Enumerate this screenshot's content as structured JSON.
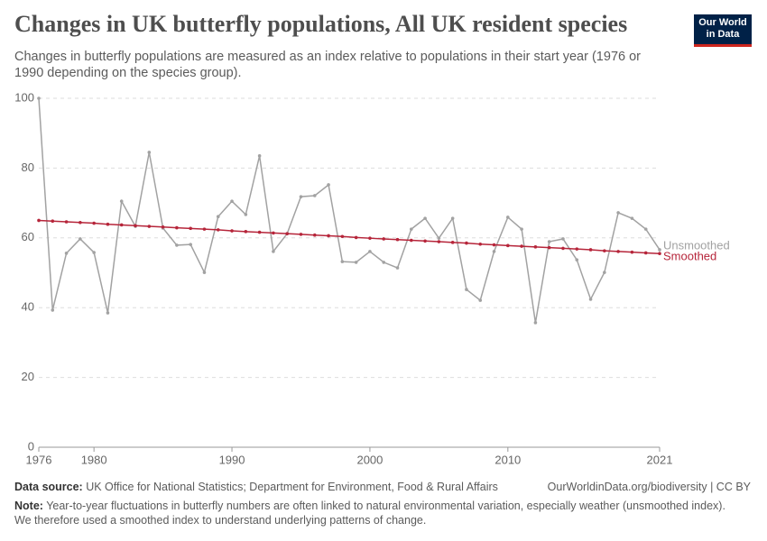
{
  "chart_data": {
    "type": "line",
    "title": "Changes in UK butterfly populations, All UK resident species",
    "subtitle": "Changes in butterfly populations are measured as an index relative to populations in their start year (1976 or 1990 depending on the species group).",
    "logo": "Our World in Data",
    "x": [
      1976,
      1977,
      1978,
      1979,
      1980,
      1981,
      1982,
      1983,
      1984,
      1985,
      1986,
      1987,
      1988,
      1989,
      1990,
      1991,
      1992,
      1993,
      1994,
      1995,
      1996,
      1997,
      1998,
      1999,
      2000,
      2001,
      2002,
      2003,
      2004,
      2005,
      2006,
      2007,
      2008,
      2009,
      2010,
      2011,
      2012,
      2013,
      2014,
      2015,
      2016,
      2017,
      2018,
      2019,
      2020,
      2021
    ],
    "series": [
      {
        "name": "Unsmoothed",
        "color": "#a2a2a2",
        "values": [
          100,
          39.3,
          55.6,
          59.7,
          55.8,
          38.5,
          70.5,
          63.3,
          84.5,
          62.8,
          57.9,
          58.1,
          50.1,
          66.1,
          70.5,
          66.7,
          83.5,
          56.1,
          61.2,
          71.8,
          72.1,
          75.2,
          53.2,
          53.0,
          56.1,
          53.0,
          51.4,
          62.5,
          65.6,
          59.9,
          65.6,
          45.2,
          42.1,
          56.1,
          65.9,
          62.5,
          35.7,
          58.9,
          59.7,
          53.7,
          42.4,
          50.1,
          67.2,
          65.6,
          62.5,
          56.6
        ]
      },
      {
        "name": "Smoothed",
        "color": "#b6253a",
        "values": [
          65.0,
          64.8,
          64.6,
          64.4,
          64.2,
          63.9,
          63.7,
          63.5,
          63.3,
          63.1,
          62.9,
          62.7,
          62.5,
          62.3,
          62.0,
          61.8,
          61.6,
          61.4,
          61.2,
          61.0,
          60.8,
          60.6,
          60.4,
          60.1,
          59.9,
          59.7,
          59.5,
          59.3,
          59.1,
          58.9,
          58.7,
          58.5,
          58.2,
          58.0,
          57.8,
          57.6,
          57.4,
          57.2,
          57.0,
          56.8,
          56.6,
          56.3,
          56.1,
          55.9,
          55.7,
          55.5
        ]
      }
    ],
    "xlim": [
      1976,
      2021
    ],
    "xticks": [
      1976,
      1980,
      1990,
      2000,
      2010,
      2021
    ],
    "ylim": [
      0,
      100
    ],
    "yticks": [
      0,
      20,
      40,
      60,
      80,
      100
    ],
    "grid": true,
    "source_label": "Data source:",
    "source": "UK Office for National Statistics; Department for Environment, Food & Rural Affairs",
    "url": "OurWorldinData.org/biodiversity | CC BY",
    "note_label": "Note:",
    "note": "Year-to-year fluctuations in butterfly numbers are often linked to natural environmental variation, especially weather (unsmoothed index). We therefore used a smoothed index to understand underlying patterns of change."
  }
}
